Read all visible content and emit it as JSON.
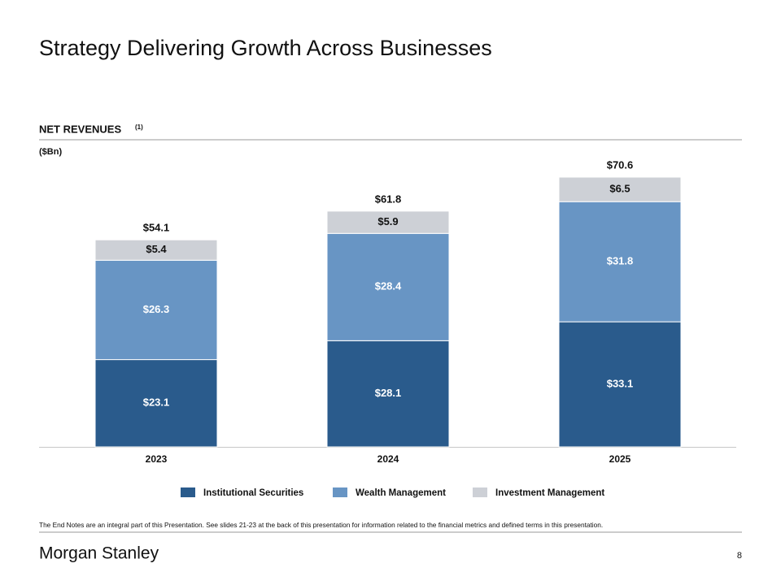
{
  "header": {
    "title": "Strategy Delivering Growth Across Businesses"
  },
  "chart_data": {
    "type": "stacked_bar",
    "title": "NET REVENUES",
    "title_note": "(1)",
    "unit": "($Bn)",
    "categories": [
      "2023",
      "2024",
      "2025"
    ],
    "series": [
      {
        "name": "Institutional Securities",
        "color": "#2a5b8c",
        "label_color": "#ffffff",
        "values": [
          23.1,
          28.1,
          33.1
        ],
        "value_labels": [
          "$23.1",
          "$28.1",
          "$33.1"
        ]
      },
      {
        "name": "Wealth Management",
        "color": "#6895c4",
        "label_color": "#ffffff",
        "values": [
          26.3,
          28.4,
          31.8
        ],
        "value_labels": [
          "$26.3",
          "$28.4",
          "$31.8"
        ]
      },
      {
        "name": "Investment Management",
        "color": "#cdd0d6",
        "label_color": "#111111",
        "values": [
          5.4,
          5.9,
          6.5
        ],
        "value_labels": [
          "$5.4",
          "$5.9",
          "$6.5"
        ]
      }
    ],
    "totals": {
      "values": [
        54.1,
        61.8,
        70.6
      ],
      "value_labels": [
        "$54.1",
        "$61.8",
        "$70.6"
      ]
    }
  },
  "footer": {
    "note": "The End Notes are an integral part of this Presentation. See slides 21-23  at the back of this presentation for information related to the financial metrics and defined terms in this presentation.",
    "logo": "Morgan Stanley",
    "page": "8"
  }
}
